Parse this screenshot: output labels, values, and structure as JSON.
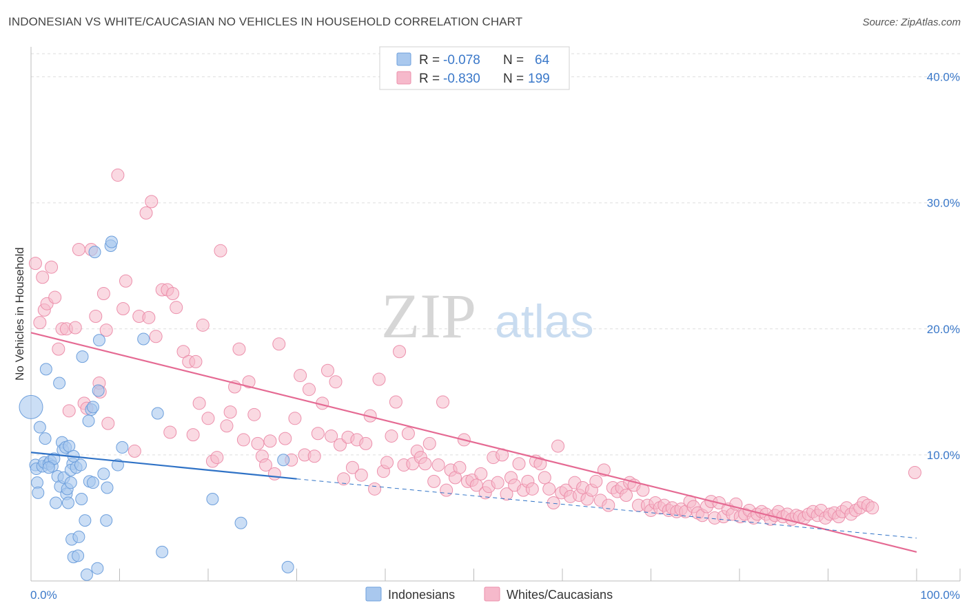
{
  "title": "INDONESIAN VS WHITE/CAUCASIAN NO VEHICLES IN HOUSEHOLD CORRELATION CHART",
  "source": "Source: ZipAtlas.com",
  "watermark": {
    "zip": "ZIP",
    "atlas": "atlas"
  },
  "colors": {
    "indonesian_fill": "#a9c8ee",
    "indonesian_stroke": "#6d9fdc",
    "indonesian_line": "#2f72c6",
    "white_fill": "#f6b9cb",
    "white_stroke": "#ec8fab",
    "white_line": "#e56a93",
    "grid": "#dddddd",
    "tick_label": "#3a78c9"
  },
  "legend": {
    "r_label": "R =",
    "n_label": "N =",
    "rows": [
      {
        "r": "-0.078",
        "n": "64"
      },
      {
        "r": "-0.830",
        "n": "199"
      }
    ]
  },
  "chart_data": {
    "type": "scatter",
    "title": "INDONESIAN VS WHITE/CAUCASIAN NO VEHICLES IN HOUSEHOLD CORRELATION CHART",
    "xlabel": "",
    "ylabel": "No Vehicles in Household",
    "xlim": [
      0,
      100
    ],
    "ylim": [
      0,
      42
    ],
    "y_ticks": [
      10,
      20,
      30,
      40
    ],
    "y_tick_labels": [
      "10.0%",
      "20.0%",
      "30.0%",
      "40.0%"
    ],
    "x_tick_labels": [
      "0.0%",
      "100.0%"
    ],
    "grid": true,
    "legend_position": "top-center",
    "series": [
      {
        "name": "Indonesians",
        "color": "#a9c8ee",
        "trend": {
          "x": [
            0,
            30,
            100
          ],
          "y": [
            10.2,
            8.1,
            3.4
          ],
          "solid_until": 30
        },
        "points": [
          [
            0,
            13.8,
            3
          ],
          [
            0.5,
            9.2,
            1
          ],
          [
            0.6,
            8.9,
            1
          ],
          [
            0.7,
            7.8,
            1
          ],
          [
            0.8,
            7,
            1
          ],
          [
            1,
            12.2,
            1
          ],
          [
            1.3,
            9.1,
            1
          ],
          [
            1.5,
            9.4,
            1
          ],
          [
            1.6,
            11.3,
            1
          ],
          [
            1.7,
            16.8,
            1
          ],
          [
            2,
            9.3,
            1
          ],
          [
            2.2,
            9.5,
            1
          ],
          [
            2.4,
            9.1,
            1
          ],
          [
            2.6,
            9.7,
            1
          ],
          [
            2.8,
            6.2,
            1
          ],
          [
            3,
            8.3,
            1
          ],
          [
            3.2,
            15.7,
            1
          ],
          [
            3.3,
            7.5,
            1
          ],
          [
            3.5,
            11,
            1
          ],
          [
            3.6,
            10.4,
            1
          ],
          [
            3.7,
            8.2,
            1
          ],
          [
            3.9,
            10.6,
            1
          ],
          [
            4,
            6.9,
            1
          ],
          [
            4.1,
            7.3,
            1
          ],
          [
            4.2,
            6.2,
            1
          ],
          [
            4.3,
            10.7,
            1
          ],
          [
            4.5,
            7.8,
            1
          ],
          [
            4.7,
            9.3,
            1
          ],
          [
            4.8,
            9.9,
            1
          ],
          [
            4.5,
            8.8,
            1
          ],
          [
            4.6,
            3.3,
            1
          ],
          [
            4.8,
            1.9,
            1
          ],
          [
            5.1,
            9,
            1
          ],
          [
            5.3,
            2.0,
            1
          ],
          [
            5.4,
            3.5,
            1
          ],
          [
            5.6,
            9.2,
            1
          ],
          [
            5.7,
            6.5,
            1
          ],
          [
            5.8,
            17.8,
            1
          ],
          [
            6.1,
            4.8,
            1
          ],
          [
            6.3,
            0.5,
            1
          ],
          [
            6.5,
            12.7,
            1
          ],
          [
            6.6,
            7.9,
            1
          ],
          [
            6.8,
            13.6,
            1
          ],
          [
            7,
            13.8,
            1
          ],
          [
            7,
            7.8,
            1
          ],
          [
            7.2,
            26.1,
            1
          ],
          [
            7.5,
            1.0,
            1
          ],
          [
            7.6,
            15.1,
            1
          ],
          [
            7.7,
            19.1,
            1
          ],
          [
            8.2,
            8.5,
            1
          ],
          [
            8.5,
            4.8,
            1
          ],
          [
            8.6,
            7.4,
            1
          ],
          [
            9.0,
            26.6,
            1
          ],
          [
            9.1,
            26.9,
            1
          ],
          [
            9.8,
            9.2,
            1
          ],
          [
            10.3,
            10.6,
            1
          ],
          [
            12.7,
            19.2,
            1
          ],
          [
            14.3,
            13.3,
            1
          ],
          [
            14.8,
            2.3,
            1
          ],
          [
            20.5,
            6.5,
            1
          ],
          [
            23.7,
            4.6,
            1
          ],
          [
            28.5,
            9.6,
            1
          ],
          [
            29.0,
            1.1,
            1
          ],
          [
            2.0,
            9.0,
            1
          ]
        ]
      },
      {
        "name": "Whites/Caucasians",
        "color": "#f6b9cb",
        "trend": {
          "x": [
            0,
            100
          ],
          "y": [
            19.7,
            2.3
          ]
        },
        "points": [
          [
            0.5,
            25.2
          ],
          [
            1,
            20.5
          ],
          [
            1.3,
            24.1
          ],
          [
            1.5,
            21.5
          ],
          [
            1.8,
            22.0
          ],
          [
            2.3,
            24.9
          ],
          [
            2.7,
            22.5
          ],
          [
            3.1,
            18.4
          ],
          [
            3.5,
            20.0
          ],
          [
            4,
            20.0
          ],
          [
            4.3,
            13.5
          ],
          [
            5,
            20.1
          ],
          [
            5.4,
            26.3
          ],
          [
            6,
            14.1
          ],
          [
            6.3,
            13.7
          ],
          [
            6.8,
            26.3
          ],
          [
            7.3,
            21.0
          ],
          [
            7.7,
            15.7
          ],
          [
            7.8,
            15.0
          ],
          [
            8.2,
            22.8
          ],
          [
            8.5,
            19.9
          ],
          [
            8.7,
            12.5
          ],
          [
            9.8,
            32.2
          ],
          [
            10.4,
            21.6
          ],
          [
            10.7,
            23.8
          ],
          [
            11.7,
            10.3
          ],
          [
            12.2,
            21.0
          ],
          [
            13,
            29.2
          ],
          [
            13.3,
            20.9
          ],
          [
            13.6,
            30.1
          ],
          [
            14.1,
            19.4
          ],
          [
            14.8,
            23.1
          ],
          [
            15.4,
            23.1
          ],
          [
            15.7,
            11.8
          ],
          [
            16.0,
            22.8
          ],
          [
            16.4,
            21.7
          ],
          [
            17.2,
            18.2
          ],
          [
            17.8,
            17.4
          ],
          [
            18.3,
            11.6
          ],
          [
            18.6,
            17.4
          ],
          [
            19,
            14.1
          ],
          [
            19.4,
            20.3
          ],
          [
            20,
            12.9
          ],
          [
            20.5,
            9.5
          ],
          [
            21,
            9.8
          ],
          [
            21.4,
            26.2
          ],
          [
            22.1,
            12.3
          ],
          [
            22.5,
            13.4
          ],
          [
            23,
            15.4
          ],
          [
            23.5,
            18.4
          ],
          [
            24,
            11.2
          ],
          [
            24.6,
            15.8
          ],
          [
            25.2,
            13.2
          ],
          [
            25.6,
            10.9
          ],
          [
            26.1,
            9.9
          ],
          [
            26.5,
            9.2
          ],
          [
            27,
            11.1
          ],
          [
            27.5,
            8.5
          ],
          [
            28,
            18.8
          ],
          [
            28.7,
            11.3
          ],
          [
            29.4,
            9.6
          ],
          [
            29.8,
            12.9
          ],
          [
            30.4,
            16.3
          ],
          [
            30.9,
            10.0
          ],
          [
            31.4,
            15.2
          ],
          [
            32,
            9.9
          ],
          [
            32.4,
            11.7
          ],
          [
            32.9,
            14.1
          ],
          [
            33.5,
            16.7
          ],
          [
            33.9,
            11.5
          ],
          [
            34.4,
            15.8
          ],
          [
            34.9,
            10.8
          ],
          [
            35.3,
            8.1
          ],
          [
            35.8,
            11.4
          ],
          [
            36.3,
            9.0
          ],
          [
            36.8,
            11.2
          ],
          [
            37.3,
            8.4
          ],
          [
            37.8,
            10.9
          ],
          [
            38.3,
            13.1
          ],
          [
            38.8,
            7.3
          ],
          [
            39.3,
            16.0
          ],
          [
            39.8,
            8.7
          ],
          [
            40.2,
            9.4
          ],
          [
            40.7,
            11.5
          ],
          [
            41.2,
            14.2
          ],
          [
            41.6,
            18.2
          ],
          [
            42.1,
            9.2
          ],
          [
            42.6,
            11.7
          ],
          [
            43.1,
            9.3
          ],
          [
            43.6,
            10.3
          ],
          [
            44.0,
            9.8
          ],
          [
            44.5,
            9.3
          ],
          [
            45,
            10.9
          ],
          [
            45.5,
            7.9
          ],
          [
            46,
            9.2
          ],
          [
            46.5,
            14.2
          ],
          [
            46.9,
            7.2
          ],
          [
            47.4,
            8.8
          ],
          [
            47.9,
            8.2
          ],
          [
            48.4,
            9.0
          ],
          [
            48.9,
            11.2
          ],
          [
            49.3,
            7.9
          ],
          [
            49.8,
            8.0
          ],
          [
            50.3,
            7.6
          ],
          [
            50.8,
            8.5
          ],
          [
            51.3,
            7.0
          ],
          [
            51.7,
            7.5
          ],
          [
            52.2,
            9.8
          ],
          [
            52.7,
            7.8
          ],
          [
            53.2,
            10.0
          ],
          [
            53.7,
            6.9
          ],
          [
            54.2,
            8.2
          ],
          [
            54.6,
            7.6
          ],
          [
            55.1,
            9.3
          ],
          [
            55.6,
            7.2
          ],
          [
            56.1,
            7.9
          ],
          [
            56.6,
            7.3
          ],
          [
            57.0,
            9.5
          ],
          [
            57.5,
            9.3
          ],
          [
            58,
            8.2
          ],
          [
            58.5,
            7.3
          ],
          [
            59,
            6.2
          ],
          [
            59.5,
            10.7
          ],
          [
            59.9,
            7.0
          ],
          [
            60.4,
            7.2
          ],
          [
            60.9,
            6.7
          ],
          [
            61.4,
            7.8
          ],
          [
            61.9,
            6.8
          ],
          [
            62.3,
            7.4
          ],
          [
            62.8,
            6.5
          ],
          [
            63.3,
            7.2
          ],
          [
            63.8,
            7.9
          ],
          [
            64.3,
            6.4
          ],
          [
            64.7,
            8.8
          ],
          [
            65.2,
            6.0
          ],
          [
            65.7,
            7.4
          ],
          [
            66.2,
            7.1
          ],
          [
            66.7,
            7.4
          ],
          [
            67.2,
            6.8
          ],
          [
            67.6,
            7.8
          ],
          [
            68.1,
            7.6
          ],
          [
            68.6,
            6.0
          ],
          [
            69.1,
            7.2
          ],
          [
            69.6,
            6.0
          ],
          [
            70,
            5.6
          ],
          [
            70.5,
            6.2
          ],
          [
            71,
            5.8
          ],
          [
            71.5,
            6.0
          ],
          [
            72,
            5.6
          ],
          [
            72.4,
            5.8
          ],
          [
            72.9,
            5.5
          ],
          [
            73.4,
            5.7
          ],
          [
            73.9,
            5.5
          ],
          [
            74.4,
            6.3
          ],
          [
            74.8,
            5.9
          ],
          [
            75.3,
            5.4
          ],
          [
            75.8,
            5.2
          ],
          [
            76.3,
            5.9
          ],
          [
            76.8,
            6.3
          ],
          [
            77.2,
            5.0
          ],
          [
            77.7,
            6.2
          ],
          [
            78.2,
            5.1
          ],
          [
            78.7,
            5.7
          ],
          [
            79.2,
            5.3
          ],
          [
            79.6,
            6.1
          ],
          [
            80.1,
            5.1
          ],
          [
            80.6,
            5.3
          ],
          [
            81.1,
            5.6
          ],
          [
            81.6,
            5.0
          ],
          [
            82,
            5.3
          ],
          [
            82.5,
            5.5
          ],
          [
            83,
            5.3
          ],
          [
            83.5,
            4.9
          ],
          [
            84,
            5.2
          ],
          [
            84.4,
            5.5
          ],
          [
            84.9,
            5.1
          ],
          [
            85.4,
            5.3
          ],
          [
            85.9,
            4.9
          ],
          [
            86.4,
            5.2
          ],
          [
            86.8,
            5.1
          ],
          [
            87.3,
            5.0
          ],
          [
            87.8,
            5.3
          ],
          [
            88.3,
            5.5
          ],
          [
            88.8,
            5.2
          ],
          [
            89.2,
            5.6
          ],
          [
            89.7,
            5.0
          ],
          [
            90.2,
            5.3
          ],
          [
            90.7,
            5.4
          ],
          [
            91.2,
            5.1
          ],
          [
            91.6,
            5.5
          ],
          [
            92.1,
            5.8
          ],
          [
            92.6,
            5.3
          ],
          [
            93.1,
            5.6
          ],
          [
            93.6,
            5.8
          ],
          [
            94.0,
            6.2
          ],
          [
            94.5,
            6.0
          ],
          [
            95,
            5.8
          ],
          [
            99.8,
            8.6
          ]
        ]
      }
    ]
  },
  "bottom_legend": [
    {
      "label": "Indonesians"
    },
    {
      "label": "Whites/Caucasians"
    }
  ]
}
